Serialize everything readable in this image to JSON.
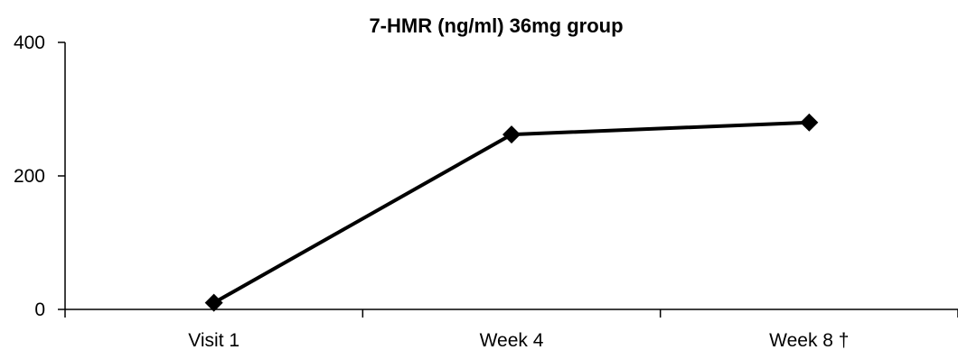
{
  "chart_data": {
    "type": "line",
    "title": "7-HMR (ng/ml) 36mg group",
    "xlabel": "",
    "ylabel": "",
    "categories": [
      "Visit 1",
      "Week 4",
      "Week 8 †"
    ],
    "series": [
      {
        "values": [
          10,
          262,
          280
        ],
        "color": "#000000",
        "marker": "diamond"
      }
    ],
    "ylim": [
      0,
      400
    ],
    "yticks": [
      0,
      200,
      400
    ],
    "grid": false,
    "legend": "none"
  }
}
